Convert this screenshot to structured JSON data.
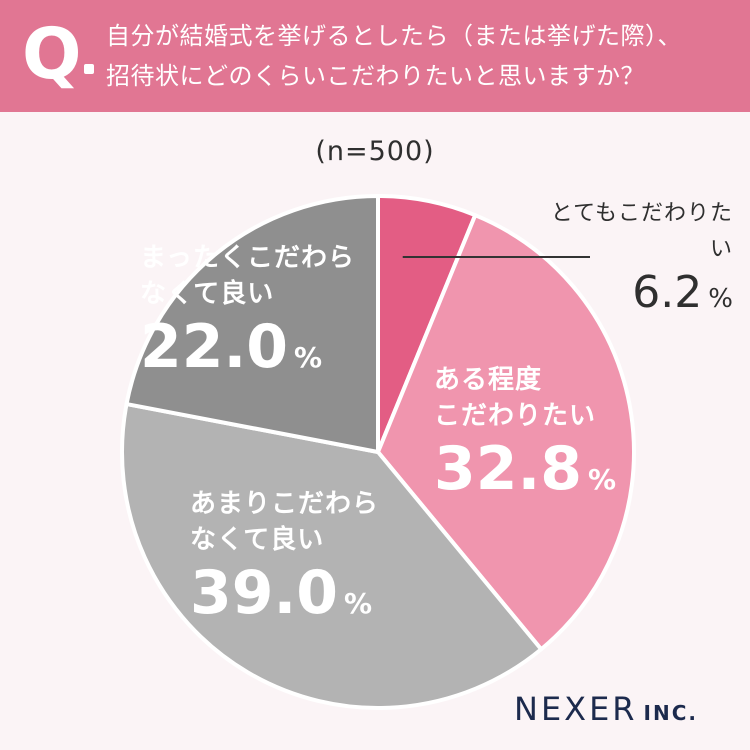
{
  "header": {
    "q_label": "Q",
    "question_line1": "自分が結婚式を挙げるとしたら（または挙げた際）、",
    "question_line2": "招待状にどのくらいこだわりたいと思いますか？"
  },
  "chart_data": {
    "type": "pie",
    "sample_size_label": "(n=500)",
    "unit": "%",
    "slices": [
      {
        "name": "とてもこだわりたい",
        "value": 6.2,
        "value_label": "6.2",
        "color": "#e35d84"
      },
      {
        "name_lines": [
          "ある程度",
          "こだわりたい"
        ],
        "name": "ある程度こだわりたい",
        "value": 32.8,
        "value_label": "32.8",
        "color": "#f095ae"
      },
      {
        "name_lines": [
          "あまりこだわら",
          "なくて良い"
        ],
        "name": "あまりこだわらなくて良い",
        "value": 39.0,
        "value_label": "39.0",
        "color": "#b3b3b3"
      },
      {
        "name_lines": [
          "まったくこだわら",
          "なくて良い"
        ],
        "name": "まったくこだわらなくて良い",
        "value": 22.0,
        "value_label": "22.0",
        "color": "#8f8f8f"
      }
    ]
  },
  "brand": {
    "name": "NEXER",
    "suffix": "INC."
  }
}
